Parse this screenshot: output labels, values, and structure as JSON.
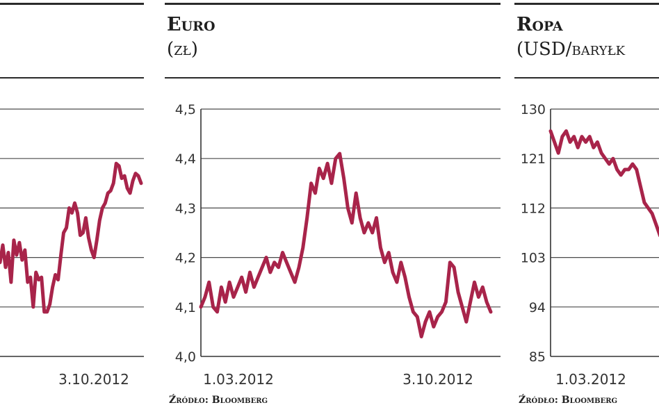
{
  "panels": [
    {
      "title": "",
      "unit": "",
      "source": "",
      "chart_data": {
        "type": "line",
        "title": "",
        "xlabel": "",
        "ylabel": "",
        "x_tick_labels": [
          "",
          "3.10.2012"
        ],
        "y_tick_labels": [],
        "grid": true,
        "series": [
          {
            "values": [
              0.38,
              0.45,
              0.36,
              0.42,
              0.3,
              0.47,
              0.41,
              0.46,
              0.39,
              0.43,
              0.3,
              0.32,
              0.2,
              0.34,
              0.31,
              0.32,
              0.18,
              0.18,
              0.21,
              0.28,
              0.33,
              0.31,
              0.41,
              0.5,
              0.52,
              0.6,
              0.58,
              0.62,
              0.58,
              0.49,
              0.5,
              0.56,
              0.48,
              0.43,
              0.4,
              0.47,
              0.55,
              0.6,
              0.62,
              0.66,
              0.67,
              0.7,
              0.78,
              0.77,
              0.72,
              0.73,
              0.68,
              0.66,
              0.71,
              0.74,
              0.73,
              0.7
            ]
          }
        ]
      }
    },
    {
      "title": "Euro",
      "unit": "(zł)",
      "source": "Źródło: Bloomberg",
      "chart_data": {
        "type": "line",
        "title": "Euro",
        "xlabel": "",
        "ylabel": "zł",
        "ylim": [
          4.0,
          4.5
        ],
        "y_ticks": [
          4.0,
          4.1,
          4.2,
          4.3,
          4.4,
          4.5
        ],
        "y_tick_labels": [
          "4,0",
          "4,1",
          "4,2",
          "4,3",
          "4,4",
          "4,5"
        ],
        "x_tick_labels": [
          "1.03.2012",
          "3.10.2012"
        ],
        "grid": true,
        "series": [
          {
            "values": [
              4.1,
              4.12,
              4.15,
              4.1,
              4.09,
              4.14,
              4.11,
              4.15,
              4.12,
              4.14,
              4.16,
              4.13,
              4.17,
              4.14,
              4.16,
              4.18,
              4.2,
              4.17,
              4.19,
              4.18,
              4.21,
              4.19,
              4.17,
              4.15,
              4.18,
              4.22,
              4.28,
              4.35,
              4.33,
              4.38,
              4.36,
              4.39,
              4.35,
              4.4,
              4.41,
              4.36,
              4.3,
              4.27,
              4.33,
              4.28,
              4.25,
              4.27,
              4.25,
              4.28,
              4.22,
              4.19,
              4.21,
              4.17,
              4.15,
              4.19,
              4.16,
              4.12,
              4.09,
              4.08,
              4.04,
              4.07,
              4.09,
              4.06,
              4.08,
              4.09,
              4.11,
              4.19,
              4.18,
              4.13,
              4.1,
              4.07,
              4.11,
              4.15,
              4.12,
              4.14,
              4.11,
              4.09
            ]
          }
        ]
      }
    },
    {
      "title": "Ropa",
      "unit": "(USD/baryłk",
      "source": "Źródło: Bloomberg",
      "chart_data": {
        "type": "line",
        "title": "Ropa",
        "xlabel": "",
        "ylabel": "USD/baryłka",
        "ylim": [
          85,
          130
        ],
        "y_ticks": [
          85,
          94,
          103,
          112,
          121,
          130
        ],
        "y_tick_labels": [
          "85",
          "94",
          "103",
          "112",
          "121",
          "130"
        ],
        "x_tick_labels": [
          "1.03.2012"
        ],
        "grid": true,
        "series": [
          {
            "values": [
              126,
              124,
              122,
              125,
              126,
              124,
              125,
              123,
              125,
              124,
              125,
              123,
              124,
              122,
              121,
              120,
              121,
              119,
              118,
              119,
              119,
              120,
              119,
              116,
              113,
              112,
              111,
              109,
              107,
              106
            ]
          }
        ]
      }
    }
  ]
}
